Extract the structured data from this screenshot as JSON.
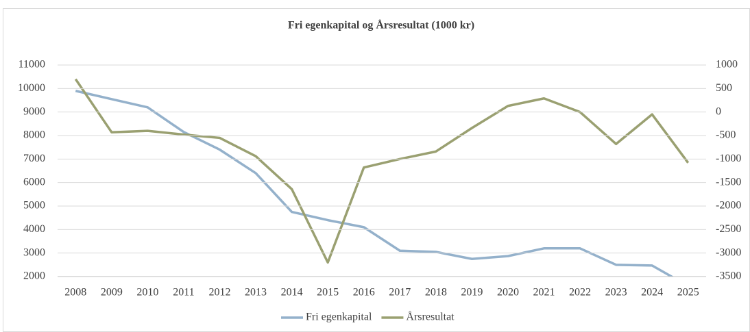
{
  "chart_data": {
    "type": "line",
    "title": "Fri egenkapital og Årsresultat (1000 kr)",
    "categories": [
      "2008",
      "2009",
      "2010",
      "2011",
      "2012",
      "2013",
      "2014",
      "2015",
      "2016",
      "2017",
      "2018",
      "2019",
      "2020",
      "2021",
      "2022",
      "2023",
      "2024",
      "2025"
    ],
    "series": [
      {
        "name": "Fri egenkapital",
        "color": "#94b1cb",
        "values": [
          9900,
          9550,
          9200,
          8150,
          7400,
          6400,
          4750,
          4400,
          4100,
          3100,
          3050,
          2750,
          2870,
          3200,
          3200,
          2500,
          2470,
          1600
        ]
      },
      {
        "name": "Årsresultat",
        "color": "#9aa071",
        "axis": "y2",
        "values": [
          700,
          -430,
          -400,
          -480,
          -550,
          -940,
          -1640,
          -3200,
          -1180,
          -1000,
          -840,
          -340,
          130,
          290,
          0,
          -680,
          -50,
          -1080
        ]
      }
    ],
    "ylim": [
      2000,
      11000
    ],
    "yticks": [
      2000,
      3000,
      4000,
      5000,
      6000,
      7000,
      8000,
      9000,
      10000,
      11000
    ],
    "y2lim": [
      -3500,
      1000
    ],
    "y2ticks": [
      -3500,
      -3000,
      -2500,
      -2000,
      -1500,
      -1000,
      -500,
      0,
      500,
      1000
    ],
    "grid": true,
    "legend": "bottom"
  }
}
